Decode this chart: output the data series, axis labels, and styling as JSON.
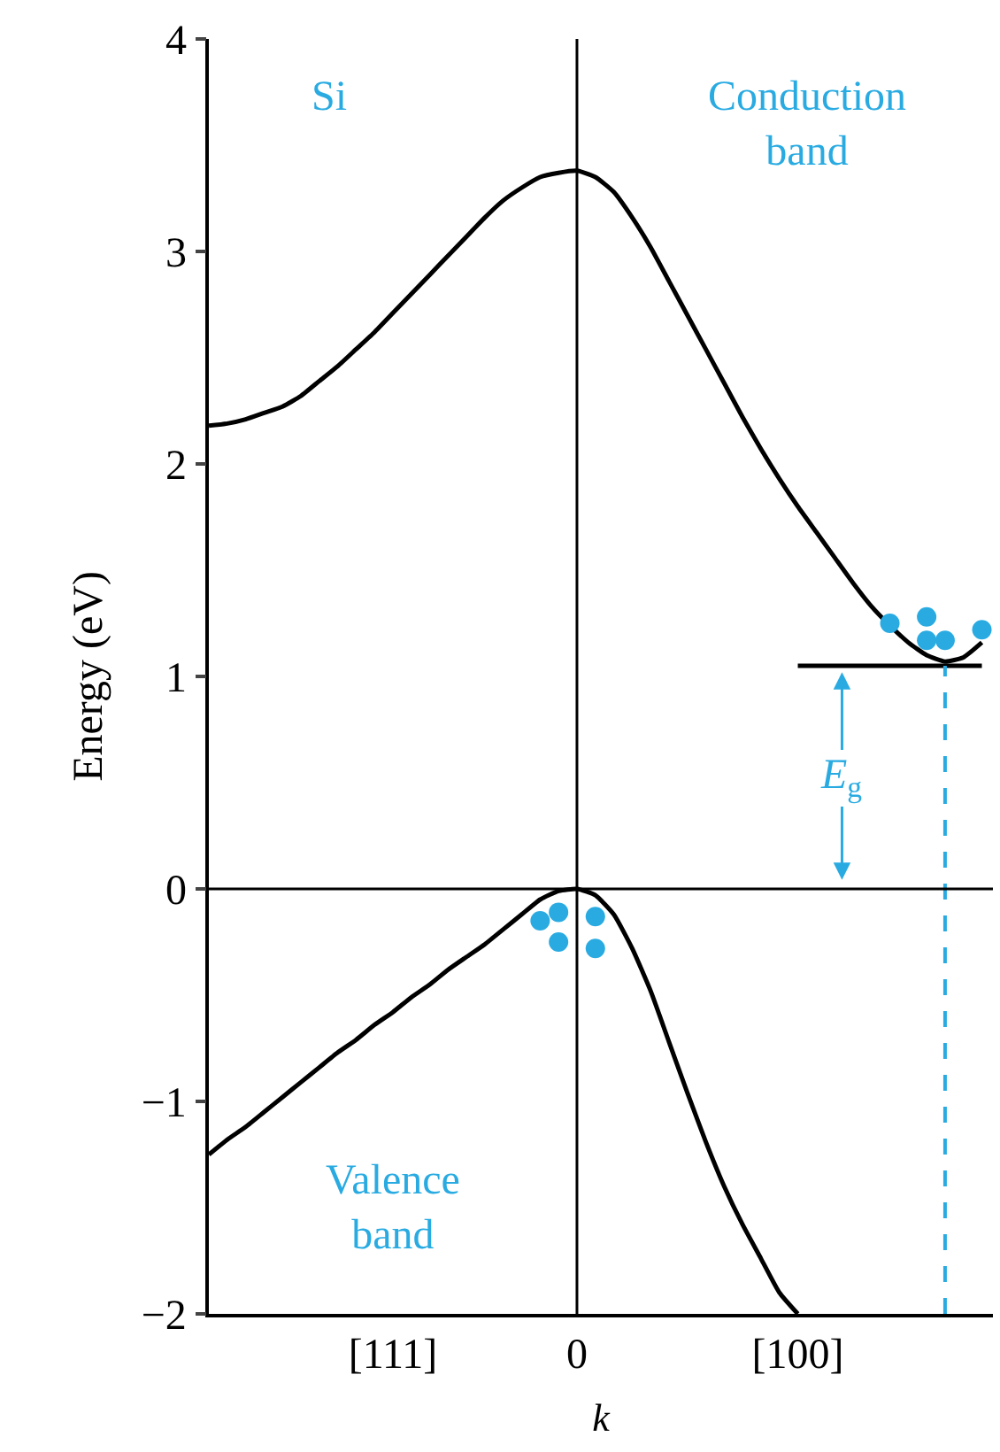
{
  "chart_data": {
    "type": "line",
    "xlabel": "k",
    "ylabel": "Energy (eV)",
    "categories": [
      null,
      null,
      null,
      null,
      null,
      null,
      null,
      null,
      null,
      null,
      "[111]",
      null,
      null,
      null,
      null,
      null,
      null,
      null,
      null,
      null,
      "0",
      null,
      null,
      null,
      null,
      null,
      null,
      null,
      null,
      null,
      null,
      null,
      "[100]",
      null,
      null,
      null,
      null,
      null,
      null,
      null,
      null,
      null,
      null
    ],
    "ylim": [
      -2,
      4
    ],
    "yticks": [
      -2,
      -1,
      0,
      1,
      2,
      3,
      4
    ],
    "ref_lines": [
      {
        "axis": "y",
        "value": 0,
        "color": "#000000"
      },
      {
        "axis": "x",
        "value": "0",
        "color": "#000000"
      }
    ],
    "annotations": [
      "Si",
      "Conduction band",
      "Valence band",
      "E$_{g}$"
    ],
    "series": [
      {
        "color": "#000000",
        "line_style": "solid",
        "values": [
          2.18,
          2.19,
          2.21,
          2.24,
          2.27,
          2.32,
          2.39,
          2.46,
          2.54,
          2.62,
          2.71,
          2.8,
          2.89,
          2.98,
          3.07,
          3.16,
          3.24,
          3.3,
          3.35,
          3.37,
          3.38,
          3.35,
          3.28,
          3.16,
          3.02,
          2.86,
          2.7,
          2.54,
          2.38,
          2.22,
          2.07,
          1.93,
          1.8,
          1.68,
          1.56,
          1.44,
          1.33,
          1.24,
          1.16,
          1.1,
          1.07,
          1.09,
          1.16
        ]
      },
      {
        "color": "#000000",
        "line_style": "solid",
        "values": [
          -1.25,
          -1.18,
          -1.12,
          -1.05,
          -0.98,
          -0.91,
          -0.84,
          -0.77,
          -0.71,
          -0.64,
          -0.58,
          -0.51,
          -0.45,
          -0.38,
          -0.32,
          -0.26,
          -0.19,
          -0.12,
          -0.05,
          -0.01,
          0,
          -0.03,
          -0.12,
          -0.28,
          -0.48,
          -0.72,
          -0.96,
          -1.19,
          -1.4,
          -1.58,
          -1.74,
          -1.9,
          -2.0,
          null,
          null,
          null,
          null,
          null,
          null,
          null,
          null,
          null,
          null
        ]
      },
      {
        "color": "#000000",
        "line_style": "solid",
        "values": [
          null,
          null,
          null,
          null,
          null,
          null,
          null,
          null,
          null,
          null,
          null,
          null,
          null,
          null,
          null,
          null,
          null,
          null,
          null,
          null,
          null,
          null,
          null,
          null,
          null,
          null,
          null,
          null,
          null,
          null,
          null,
          null,
          1.05,
          1.05,
          1.05,
          1.05,
          1.05,
          1.05,
          1.05,
          1.05,
          1.05,
          1.05,
          1.05
        ]
      },
      {
        "type": "scatter",
        "color": "#29abe2",
        "marker": "circle",
        "values": [
          null,
          null,
          null,
          null,
          null,
          null,
          null,
          null,
          null,
          null,
          null,
          null,
          null,
          null,
          null,
          null,
          null,
          null,
          null,
          null,
          null,
          null,
          null,
          null,
          null,
          null,
          null,
          null,
          null,
          null,
          null,
          null,
          null,
          null,
          null,
          null,
          null,
          1.25,
          null,
          1.28,
          null,
          null,
          1.22
        ]
      },
      {
        "type": "scatter",
        "color": "#29abe2",
        "marker": "circle",
        "values": [
          null,
          null,
          null,
          null,
          null,
          null,
          null,
          null,
          null,
          null,
          null,
          null,
          null,
          null,
          null,
          null,
          null,
          null,
          null,
          null,
          null,
          null,
          null,
          null,
          null,
          null,
          null,
          null,
          null,
          null,
          null,
          null,
          null,
          null,
          null,
          null,
          null,
          null,
          null,
          1.17,
          1.17,
          null,
          null
        ]
      },
      {
        "type": "scatter",
        "color": "#29abe2",
        "marker": "circle",
        "values": [
          null,
          null,
          null,
          null,
          null,
          null,
          null,
          null,
          null,
          null,
          null,
          null,
          null,
          null,
          null,
          null,
          null,
          null,
          -0.15,
          -0.11,
          null,
          -0.13,
          null,
          null,
          null,
          null,
          null,
          null,
          null,
          null,
          null,
          null,
          null,
          null,
          null,
          null,
          null,
          null,
          null,
          null,
          null,
          null,
          null
        ]
      },
      {
        "type": "scatter",
        "color": "#29abe2",
        "marker": "circle",
        "values": [
          null,
          null,
          null,
          null,
          null,
          null,
          null,
          null,
          null,
          null,
          null,
          null,
          null,
          null,
          null,
          null,
          null,
          null,
          null,
          -0.25,
          null,
          -0.28,
          null,
          null,
          null,
          null,
          null,
          null,
          null,
          null,
          null,
          null,
          null,
          null,
          null,
          null,
          null,
          null,
          null,
          null,
          null,
          null,
          null
        ]
      }
    ]
  }
}
